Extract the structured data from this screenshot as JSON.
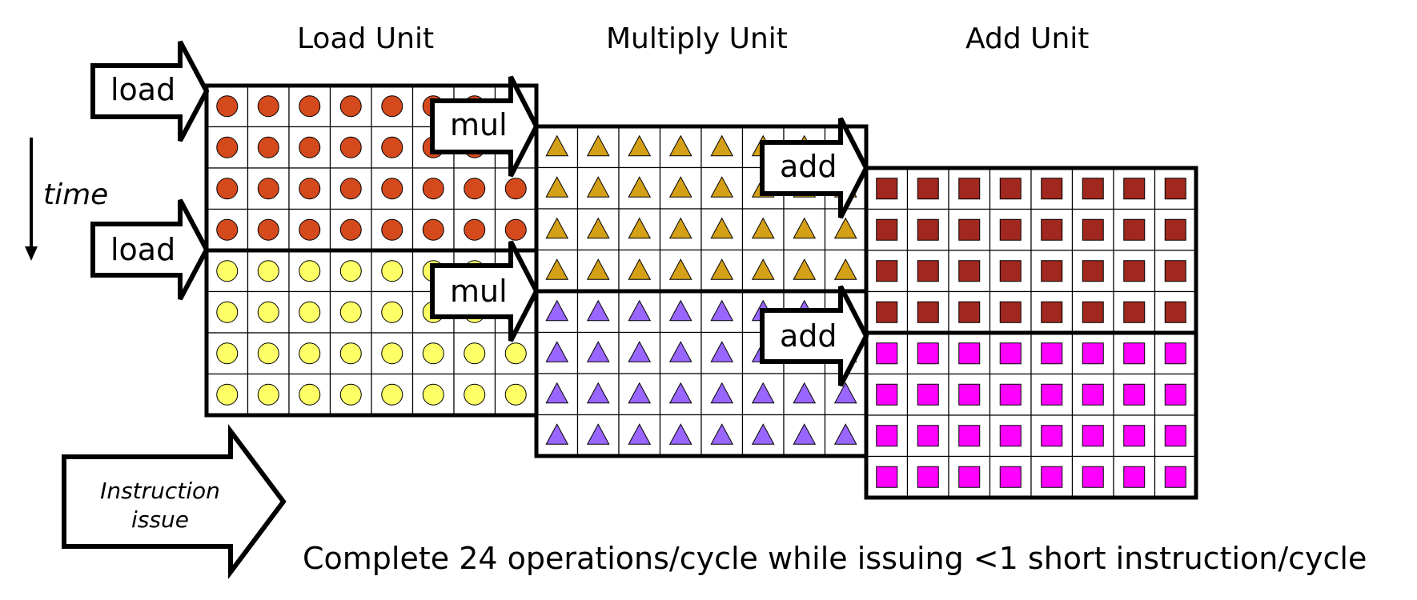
{
  "units": {
    "load": "Load Unit",
    "multiply": "Multiply Unit",
    "add": "Add Unit"
  },
  "arrows": {
    "load_1": "load",
    "load_2": "load",
    "mul_1": "mul",
    "mul_2": "mul",
    "add_1": "add",
    "add_2": "add"
  },
  "time_label": "time",
  "issue_label": "Instruction issue",
  "caption": "Complete 24 operations/cycle while issuing <1 short instruction/cycle",
  "colors": {
    "load_1": "#D44A1C",
    "load_2": "#FFFF66",
    "mul_1": "#D4A017",
    "mul_2": "#9966FF",
    "add_1": "#A0281E",
    "add_2": "#FF00FF"
  }
}
